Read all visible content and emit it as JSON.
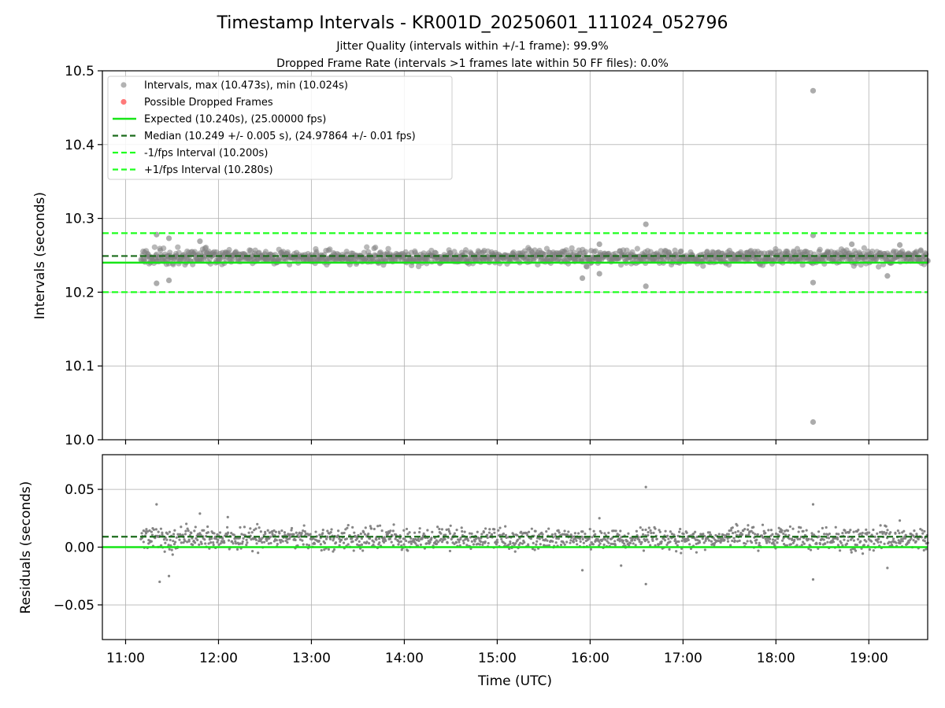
{
  "chart_data": [
    {
      "type": "scatter",
      "title": "Timestamp Intervals - KR001D_20250601_111024_052796",
      "subtitle_1": "Jitter Quality (intervals within +/-1 frame): 99.9%",
      "subtitle_2": "Dropped Frame Rate (intervals >1 frames late within 50 FF files): 0.0%",
      "xlabel": "",
      "ylabel": "Intervals (seconds)",
      "xlim": [
        "10:45",
        "19:38"
      ],
      "ylim": [
        10.0,
        10.5
      ],
      "y_ticks": [
        "10.0",
        "10.1",
        "10.2",
        "10.3",
        "10.4",
        "10.5"
      ],
      "grid": true,
      "legend_position": "top-left",
      "legend": [
        "Intervals, max (10.473s), min (10.024s)",
        "Possible Dropped Frames",
        "Expected (10.240s), (25.00000 fps)",
        "Median (10.249 +/- 0.005 s), (24.97864 +/- 0.01 fps)",
        "-1/fps Interval (10.200s)",
        "+1/fps Interval (10.280s)"
      ],
      "reference_lines": {
        "expected": 10.24,
        "median": 10.249,
        "minus_one_frame": 10.2,
        "plus_one_frame": 10.28
      },
      "data_range": {
        "start": "11:10",
        "end": "19:38"
      },
      "band": {
        "low": 10.233,
        "high": 10.262
      },
      "outliers": [
        {
          "x": "18:24",
          "y": 10.473
        },
        {
          "x": "18:24",
          "y": 10.024
        },
        {
          "x": "16:36",
          "y": 10.292
        },
        {
          "x": "16:36",
          "y": 10.208
        },
        {
          "x": "18:24",
          "y": 10.277
        },
        {
          "x": "18:24",
          "y": 10.213
        },
        {
          "x": "11:20",
          "y": 10.278
        },
        {
          "x": "11:20",
          "y": 10.212
        },
        {
          "x": "11:28",
          "y": 10.273
        },
        {
          "x": "11:28",
          "y": 10.216
        },
        {
          "x": "11:48",
          "y": 10.269
        },
        {
          "x": "16:06",
          "y": 10.265
        },
        {
          "x": "16:06",
          "y": 10.225
        },
        {
          "x": "15:55",
          "y": 10.219
        },
        {
          "x": "18:49",
          "y": 10.265
        },
        {
          "x": "19:12",
          "y": 10.222
        },
        {
          "x": "19:20",
          "y": 10.264
        }
      ],
      "colors": {
        "points": "#808080",
        "dropped": "#ff6b6b",
        "expected": "#17e517",
        "median": "#1a6b1a",
        "interval_lines": "#1fff1f"
      }
    },
    {
      "type": "scatter",
      "xlabel": "Time (UTC)",
      "ylabel": "Residuals (seconds)",
      "xlim": [
        "10:45",
        "19:38"
      ],
      "ylim": [
        -0.08,
        0.08
      ],
      "y_ticks": [
        "−0.05",
        "0.00",
        "0.05"
      ],
      "x_ticks": [
        "11:00",
        "12:00",
        "13:00",
        "14:00",
        "15:00",
        "16:00",
        "17:00",
        "18:00",
        "19:00"
      ],
      "grid": true,
      "reference_lines": {
        "zero": 0.0,
        "median_residual": 0.009
      },
      "data_range": {
        "start": "11:10",
        "end": "19:38"
      },
      "band": {
        "low": -0.007,
        "high": 0.022
      },
      "outliers": [
        {
          "x": "16:36",
          "y": 0.052
        },
        {
          "x": "16:36",
          "y": -0.032
        },
        {
          "x": "18:24",
          "y": 0.037
        },
        {
          "x": "18:24",
          "y": -0.028
        },
        {
          "x": "11:20",
          "y": 0.037
        },
        {
          "x": "11:22",
          "y": -0.03
        },
        {
          "x": "11:28",
          "y": -0.025
        },
        {
          "x": "11:48",
          "y": 0.029
        },
        {
          "x": "12:06",
          "y": 0.026
        },
        {
          "x": "15:55",
          "y": -0.02
        },
        {
          "x": "16:06",
          "y": 0.025
        },
        {
          "x": "16:20",
          "y": -0.016
        },
        {
          "x": "19:20",
          "y": 0.023
        },
        {
          "x": "19:12",
          "y": -0.018
        }
      ],
      "colors": {
        "points": "#808080",
        "zero": "#17e517",
        "median": "#1a6b1a"
      }
    }
  ]
}
